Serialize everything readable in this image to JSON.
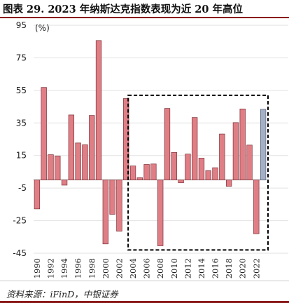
{
  "figure": {
    "title": "图表 29. 2023 年纳斯达克指数表现为近 20 年高位",
    "source": "资料来源：iFinD，中银证券"
  },
  "chart_data": {
    "type": "bar",
    "title": "图表 29. 2023 年纳斯达克指数表现为近 20 年高位",
    "ylabel": "(%)",
    "xlabel": "",
    "ylim": [
      -45,
      95
    ],
    "yticks": [
      95,
      75,
      55,
      35,
      15,
      -5,
      -25,
      -45
    ],
    "grid": true,
    "categories": [
      "1990",
      "1991",
      "1992",
      "1993",
      "1994",
      "1995",
      "1996",
      "1997",
      "1998",
      "1999",
      "2000",
      "2001",
      "2002",
      "2003",
      "2004",
      "2005",
      "2006",
      "2007",
      "2008",
      "2009",
      "2010",
      "2011",
      "2012",
      "2013",
      "2014",
      "2015",
      "2016",
      "2017",
      "2018",
      "2019",
      "2020",
      "2021",
      "2022",
      "2023"
    ],
    "xtick_labels": [
      "1990",
      "1992",
      "1994",
      "1996",
      "1998",
      "2000",
      "2002",
      "2004",
      "2006",
      "2008",
      "2010",
      "2012",
      "2014",
      "2016",
      "2018",
      "2020",
      "2022"
    ],
    "values": [
      -17.8,
      56.8,
      15.5,
      14.7,
      -3.2,
      39.9,
      22.7,
      21.6,
      39.6,
      85.6,
      -39.3,
      -21.1,
      -31.5,
      50.0,
      8.6,
      1.4,
      9.5,
      9.8,
      -40.5,
      43.9,
      16.9,
      -1.8,
      15.9,
      38.3,
      13.4,
      5.7,
      7.5,
      28.2,
      -3.9,
      35.2,
      43.6,
      21.4,
      -33.1,
      43.4
    ],
    "highlight_category": "2023",
    "colors": {
      "bar": "#e07e86",
      "highlight_bar": "#a4aec4",
      "bar_stroke": "#7a3036",
      "highlight_stroke": "#555f78",
      "grid": "#e2e2e2",
      "box": "#000000",
      "title_rule": "#8b1a1a"
    },
    "annotations": [
      {
        "type": "dashed-box",
        "from": "2004",
        "to": "2023"
      }
    ]
  }
}
